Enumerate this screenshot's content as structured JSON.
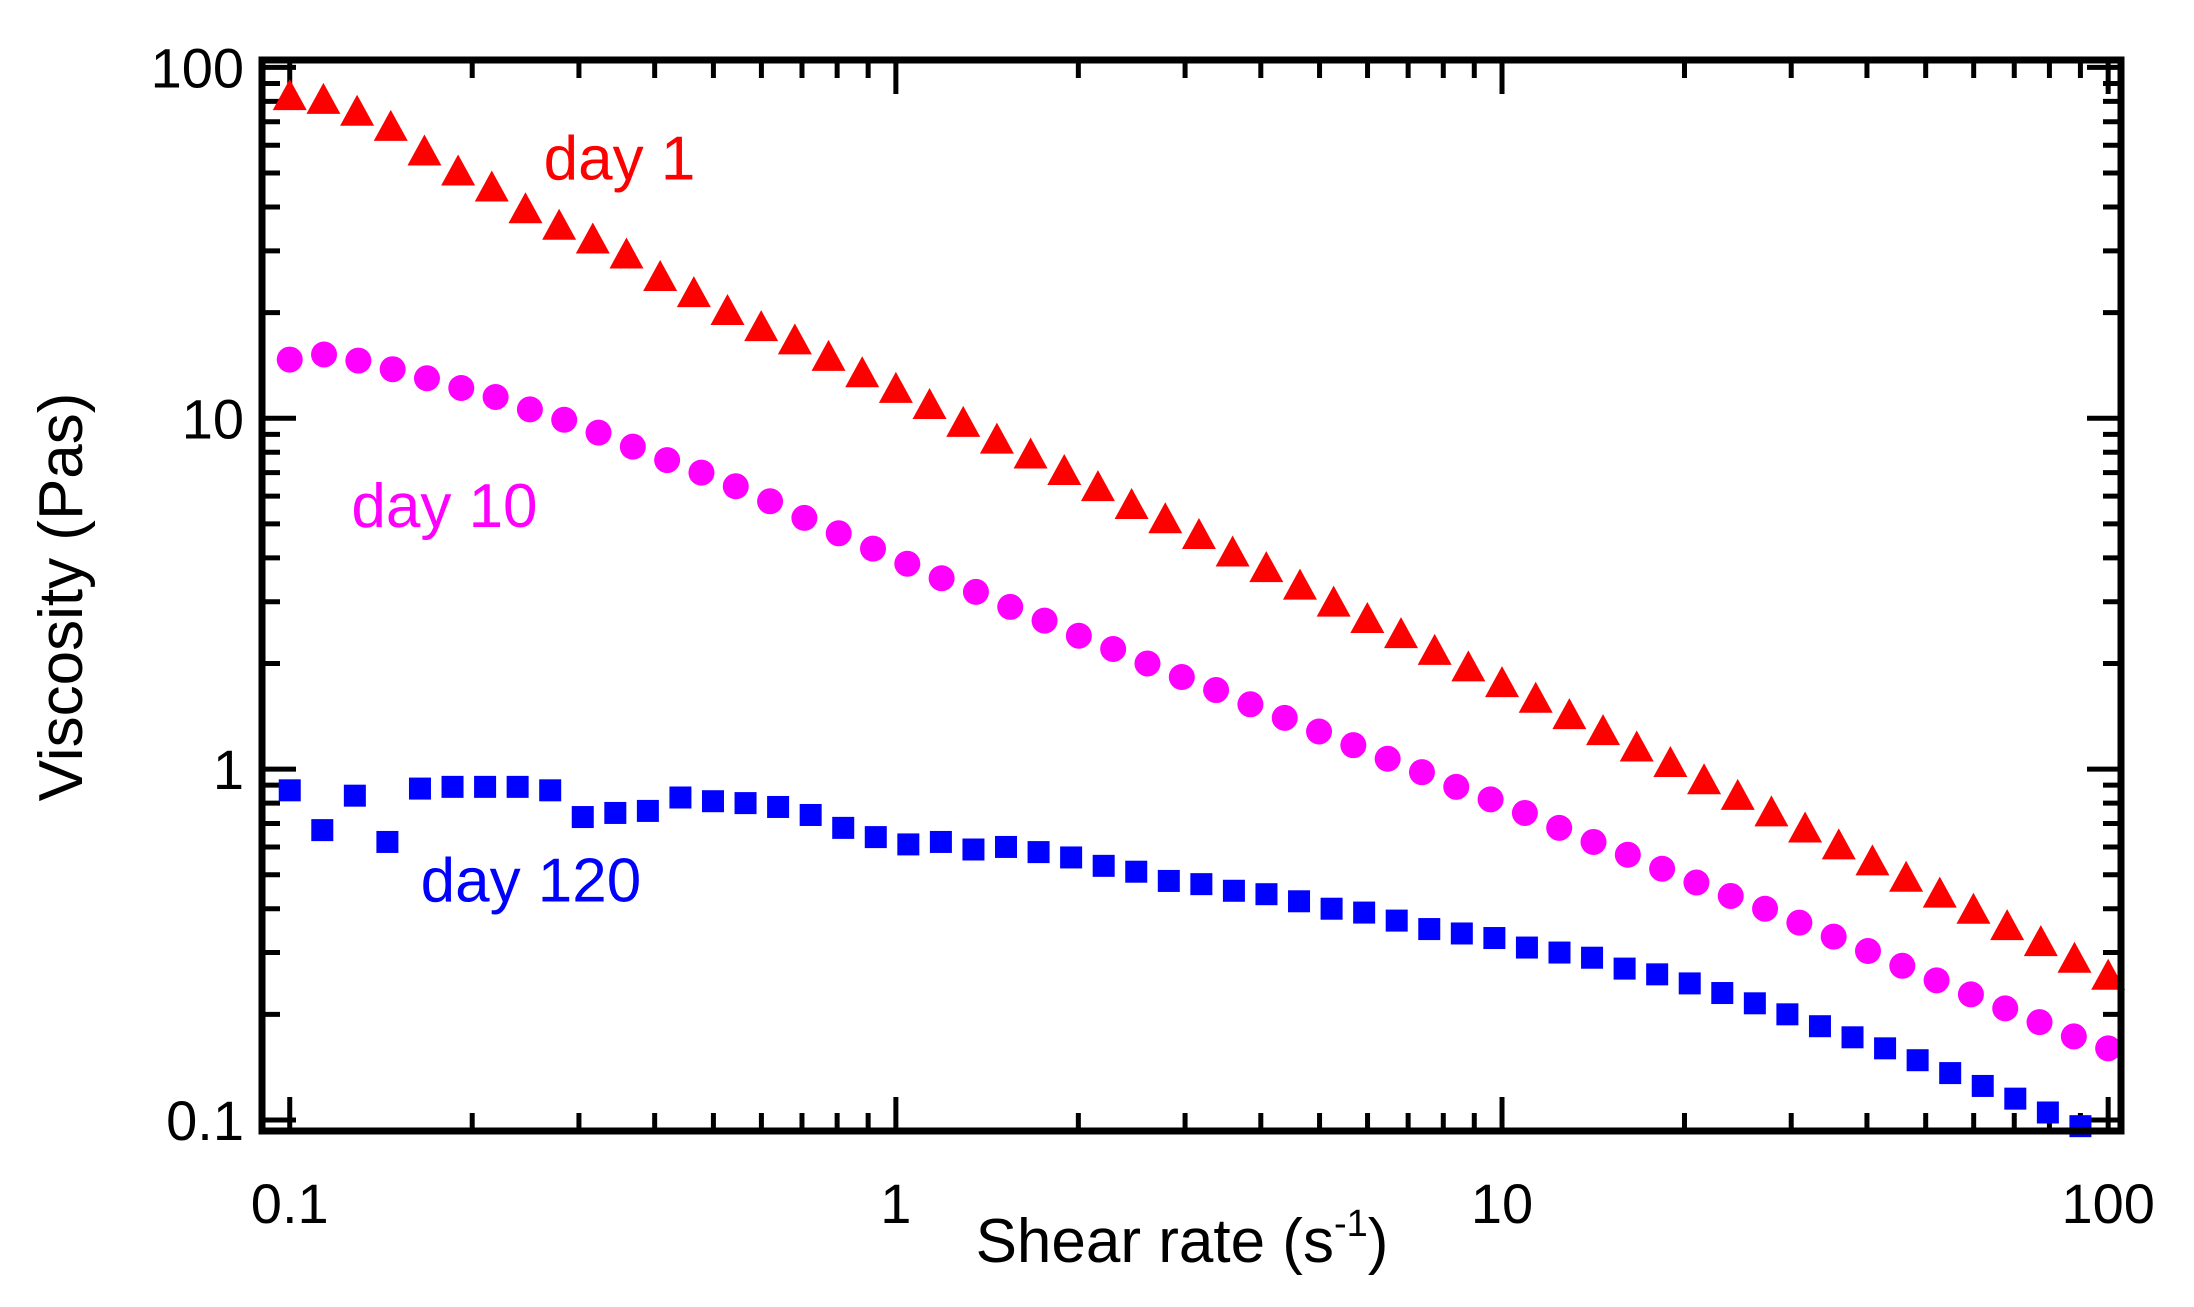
{
  "chart_data": {
    "type": "scatter",
    "x_scale": "log",
    "y_scale": "log",
    "xlim": [
      0.09,
      105
    ],
    "ylim": [
      0.093,
      105
    ],
    "xlabel": "Shear rate (s",
    "xlabel_sup": "-1",
    "xlabel_end": ")",
    "ylabel": "Viscosity (Pas)",
    "x_ticks": [
      {
        "value": 0.1,
        "label": "0.1"
      },
      {
        "value": 1,
        "label": "1"
      },
      {
        "value": 10,
        "label": "10"
      },
      {
        "value": 100,
        "label": "100"
      }
    ],
    "y_ticks": [
      {
        "value": 0.1,
        "label": "0.1"
      },
      {
        "value": 1,
        "label": "1"
      },
      {
        "value": 10,
        "label": "10"
      },
      {
        "value": 100,
        "label": "100"
      }
    ],
    "grid": false,
    "series": [
      {
        "name": "day 1",
        "label": "day 1",
        "marker": "triangle",
        "color": "#ff0000",
        "label_at": [
          0.35,
          48
        ],
        "x_start": 0.1,
        "x_end": 100,
        "values": [
          82,
          80,
          74,
          67,
          57,
          50,
          45,
          39,
          35,
          32,
          29,
          25,
          22.5,
          20,
          18,
          16.5,
          14.8,
          13.3,
          12,
          10.8,
          9.6,
          8.6,
          7.8,
          7,
          6.3,
          5.6,
          5.1,
          4.6,
          4.1,
          3.7,
          3.3,
          2.95,
          2.65,
          2.4,
          2.15,
          1.93,
          1.74,
          1.57,
          1.41,
          1.27,
          1.14,
          1.03,
          0.92,
          0.83,
          0.745,
          0.67,
          0.6,
          0.54,
          0.485,
          0.437,
          0.393,
          0.353,
          0.318,
          0.285,
          0.255
        ]
      },
      {
        "name": "day 10",
        "label": "day 10",
        "marker": "circle",
        "color": "#ff00ff",
        "label_at": [
          0.18,
          4.9
        ],
        "x_start": 0.1,
        "x_end": 100,
        "values": [
          14.7,
          15.2,
          14.6,
          13.8,
          13,
          12.2,
          11.5,
          10.6,
          9.9,
          9.1,
          8.3,
          7.6,
          7,
          6.4,
          5.8,
          5.2,
          4.7,
          4.25,
          3.85,
          3.5,
          3.2,
          2.9,
          2.65,
          2.4,
          2.2,
          2,
          1.83,
          1.68,
          1.53,
          1.4,
          1.28,
          1.17,
          1.07,
          0.98,
          0.89,
          0.82,
          0.75,
          0.68,
          0.62,
          0.57,
          0.52,
          0.475,
          0.435,
          0.4,
          0.365,
          0.333,
          0.303,
          0.275,
          0.25,
          0.228,
          0.208,
          0.19,
          0.173,
          0.16
        ]
      },
      {
        "name": "day 120",
        "label": "day 120",
        "marker": "square",
        "color": "#0000ff",
        "label_at": [
          0.25,
          0.42
        ],
        "x_start": 0.1,
        "x_end": 90,
        "values": [
          0.87,
          0.67,
          0.84,
          0.62,
          0.88,
          0.89,
          0.89,
          0.89,
          0.87,
          0.73,
          0.75,
          0.76,
          0.83,
          0.81,
          0.8,
          0.78,
          0.74,
          0.68,
          0.64,
          0.61,
          0.62,
          0.59,
          0.6,
          0.58,
          0.56,
          0.53,
          0.51,
          0.48,
          0.47,
          0.45,
          0.44,
          0.42,
          0.4,
          0.39,
          0.37,
          0.35,
          0.34,
          0.33,
          0.31,
          0.3,
          0.29,
          0.27,
          0.26,
          0.245,
          0.23,
          0.215,
          0.2,
          0.185,
          0.172,
          0.16,
          0.148,
          0.136,
          0.125,
          0.115,
          0.105,
          0.096
        ]
      }
    ]
  }
}
